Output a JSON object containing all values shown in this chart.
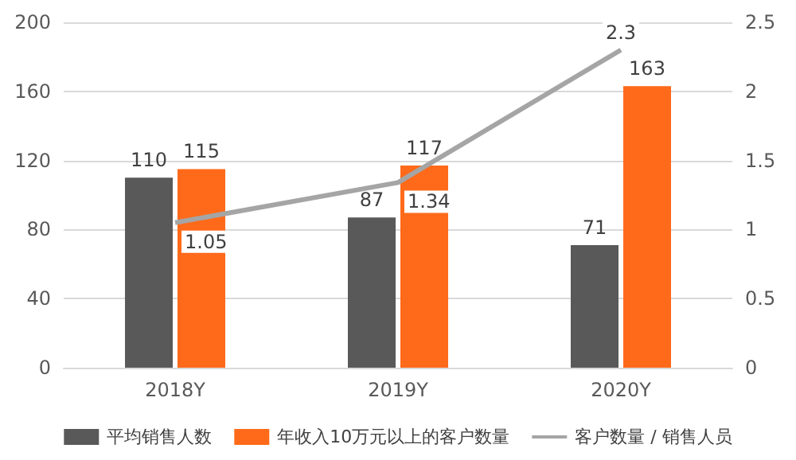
{
  "chart_data": {
    "type": "bar",
    "categories": [
      "2018Y",
      "2019Y",
      "2020Y"
    ],
    "series": [
      {
        "name": "平均销售人数",
        "color": "#595959",
        "values": [
          110,
          87,
          71
        ]
      },
      {
        "name": "年收入10万元以上的客户数量",
        "color": "#ff6a1a",
        "values": [
          115,
          117,
          163
        ]
      },
      {
        "name": "客户数量 / 销售人员",
        "color": "#a5a5a5",
        "type": "line",
        "axis": "y2",
        "marker": "none",
        "values": [
          1.05,
          1.34,
          2.3
        ]
      }
    ],
    "ylim": [
      0,
      200
    ],
    "yticks": [
      0,
      40,
      80,
      120,
      160,
      200
    ],
    "y2lim": [
      0,
      2.5
    ],
    "y2ticks": [
      0,
      0.5,
      1,
      1.5,
      2,
      2.5
    ],
    "grid": "y",
    "legend": "bottom",
    "data_labels": true
  }
}
